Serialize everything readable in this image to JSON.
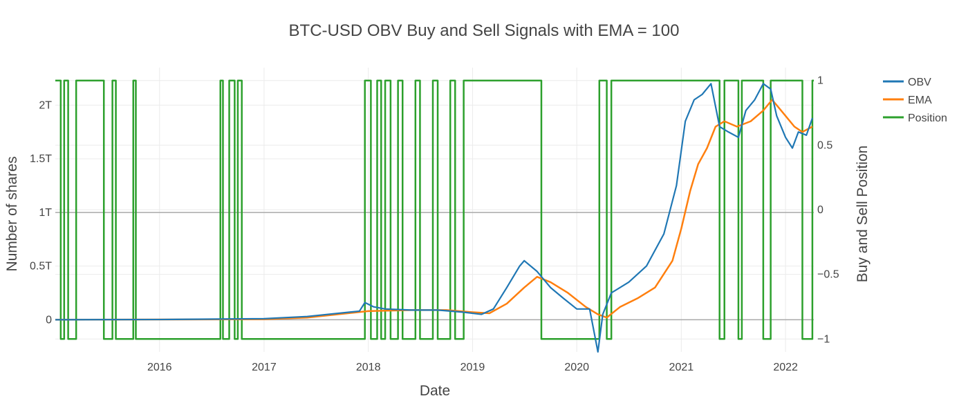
{
  "chart_data": {
    "type": "line",
    "title": "BTC-USD OBV Buy and Sell Signals with EMA = 100",
    "xlabel": "Date",
    "ylabel": "Number of shares",
    "y2label": "Buy and Sell Position",
    "xlim": [
      "2015-01-01",
      "2022-04-10"
    ],
    "ylim": [
      -0.3,
      2.35
    ],
    "y2lim": [
      -1.1,
      1.1
    ],
    "x_ticks": [
      "2016",
      "2017",
      "2018",
      "2019",
      "2020",
      "2021",
      "2022"
    ],
    "y_ticks": [
      "0",
      "0.5T",
      "1T",
      "1.5T",
      "2T"
    ],
    "y2_ticks": [
      "−1",
      "−0.5",
      "0",
      "0.5",
      "1"
    ],
    "y_tick_values": [
      0,
      0.5,
      1,
      1.5,
      2
    ],
    "y2_tick_values": [
      -1,
      -0.5,
      0,
      0.5,
      1
    ],
    "y_unit": "T",
    "grid": true,
    "legend_position": "top-right",
    "colors": {
      "OBV": "#1f77b4",
      "EMA": "#ff7f0e",
      "Position": "#2ca02c"
    },
    "series": [
      {
        "name": "OBV",
        "axis": "left",
        "x": [
          "2015-01-01",
          "2016-01-01",
          "2017-01-01",
          "2017-06-01",
          "2017-12-01",
          "2017-12-20",
          "2018-01-20",
          "2018-03-01",
          "2018-06-01",
          "2018-09-01",
          "2018-12-01",
          "2019-02-01",
          "2019-03-15",
          "2019-05-01",
          "2019-06-15",
          "2019-07-01",
          "2019-08-15",
          "2019-10-01",
          "2019-11-15",
          "2020-01-01",
          "2020-02-15",
          "2020-03-15",
          "2020-04-01",
          "2020-05-01",
          "2020-07-01",
          "2020-09-01",
          "2020-11-01",
          "2020-12-15",
          "2021-01-15",
          "2021-02-15",
          "2021-03-15",
          "2021-04-15",
          "2021-05-15",
          "2021-06-15",
          "2021-07-20",
          "2021-08-15",
          "2021-09-15",
          "2021-10-15",
          "2021-11-10",
          "2021-12-01",
          "2022-01-01",
          "2022-01-25",
          "2022-02-15",
          "2022-03-15",
          "2022-04-05"
        ],
        "values": [
          0,
          0.002,
          0.01,
          0.03,
          0.08,
          0.16,
          0.12,
          0.1,
          0.09,
          0.09,
          0.07,
          0.05,
          0.1,
          0.3,
          0.5,
          0.55,
          0.45,
          0.3,
          0.2,
          0.1,
          0.1,
          -0.3,
          0.05,
          0.25,
          0.35,
          0.5,
          0.8,
          1.25,
          1.85,
          2.05,
          2.1,
          2.2,
          1.8,
          1.75,
          1.7,
          1.95,
          2.05,
          2.2,
          2.15,
          1.9,
          1.7,
          1.6,
          1.75,
          1.72,
          1.88
        ]
      },
      {
        "name": "EMA",
        "axis": "left",
        "x": [
          "2015-01-01",
          "2016-01-01",
          "2017-01-01",
          "2017-06-01",
          "2018-01-01",
          "2018-06-01",
          "2018-10-01",
          "2019-01-01",
          "2019-03-01",
          "2019-05-01",
          "2019-07-01",
          "2019-08-15",
          "2019-10-01",
          "2019-12-01",
          "2020-02-01",
          "2020-03-15",
          "2020-04-15",
          "2020-06-01",
          "2020-08-01",
          "2020-10-01",
          "2020-12-01",
          "2021-01-01",
          "2021-02-01",
          "2021-03-01",
          "2021-04-01",
          "2021-05-01",
          "2021-06-01",
          "2021-07-15",
          "2021-09-01",
          "2021-10-15",
          "2021-11-15",
          "2021-12-01",
          "2022-01-01",
          "2022-02-01",
          "2022-03-01",
          "2022-04-05"
        ],
        "values": [
          0,
          0.002,
          0.005,
          0.02,
          0.08,
          0.09,
          0.09,
          0.07,
          0.06,
          0.15,
          0.3,
          0.4,
          0.35,
          0.25,
          0.12,
          0.05,
          0.02,
          0.12,
          0.2,
          0.3,
          0.55,
          0.85,
          1.2,
          1.45,
          1.6,
          1.8,
          1.85,
          1.8,
          1.85,
          1.95,
          2.05,
          2.0,
          1.9,
          1.8,
          1.75,
          1.8
        ]
      },
      {
        "name": "Position",
        "axis": "right",
        "x": [
          "2015-01-01",
          "2015-01-20",
          "2015-02-01",
          "2015-02-15",
          "2015-03-15",
          "2015-06-20",
          "2015-07-20",
          "2015-08-01",
          "2015-10-01",
          "2015-10-10",
          "2016-08-01",
          "2016-08-10",
          "2016-09-01",
          "2016-09-20",
          "2016-10-01",
          "2016-10-15",
          "2017-12-20",
          "2018-01-10",
          "2018-02-01",
          "2018-02-15",
          "2018-03-01",
          "2018-03-20",
          "2018-04-15",
          "2018-05-01",
          "2018-06-15",
          "2018-07-01",
          "2018-08-15",
          "2018-09-01",
          "2018-10-15",
          "2018-11-01",
          "2018-12-01",
          "2019-03-01",
          "2019-08-30",
          "2020-03-20",
          "2020-04-15",
          "2020-05-01",
          "2021-05-15",
          "2021-06-01",
          "2021-07-20",
          "2021-08-01",
          "2021-10-15",
          "2021-11-10",
          "2022-03-01",
          "2022-04-05"
        ],
        "values": [
          1,
          -1,
          1,
          -1,
          1,
          -1,
          1,
          -1,
          1,
          -1,
          1,
          -1,
          1,
          -1,
          1,
          -1,
          1,
          -1,
          1,
          -1,
          1,
          -1,
          1,
          -1,
          1,
          -1,
          1,
          -1,
          1,
          -1,
          1,
          1,
          -1,
          1,
          -1,
          1,
          -1,
          1,
          -1,
          1,
          -1,
          1,
          -1,
          1
        ]
      }
    ]
  }
}
